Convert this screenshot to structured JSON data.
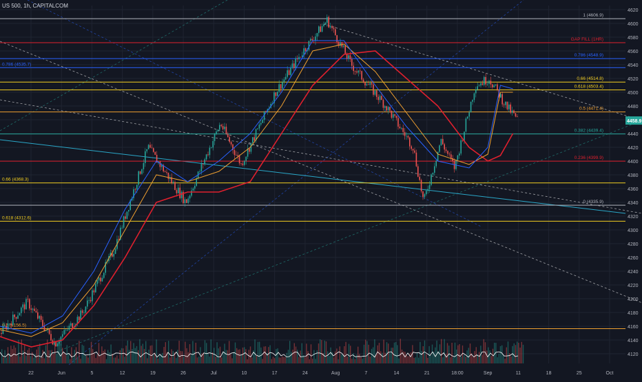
{
  "header": {
    "symbol": "US 500, 1h, CAPITALCOM"
  },
  "colors": {
    "background": "#131722",
    "grid": "#1f2431",
    "axis_text": "#b2b5be",
    "candle_up": "#26a69a",
    "candle_down": "#ef5350",
    "ma_red": "#e0202e",
    "ma_orange": "#f0a030",
    "ma_blue": "#2962ff",
    "price_tag": "#26a69a"
  },
  "chart_data": {
    "type": "line",
    "title": "US 500, 1h, CAPITALCOM",
    "xlabel": "",
    "ylabel": "",
    "ylim": [
      4106,
      4626
    ],
    "x_ticks": [
      "22",
      "Jun",
      "5",
      "12",
      "19",
      "26",
      "Jul",
      "10",
      "17",
      "24",
      "Aug",
      "7",
      "14",
      "21",
      "18:00",
      "Sep",
      "11",
      "18",
      "25",
      "Oct"
    ],
    "y_ticks": [
      4120,
      4140,
      4160,
      4180,
      4200,
      4220,
      4240,
      4260,
      4280,
      4300,
      4320,
      4340,
      4360,
      4380,
      4400,
      4420,
      4440,
      4460,
      4480,
      4500,
      4520,
      4540,
      4560,
      4580,
      4600,
      4620
    ],
    "last_price": {
      "label": "4458.9",
      "value": 4458.9
    },
    "series": [
      {
        "color": "#e0202e",
        "x": [
          0,
          0.05,
          0.1,
          0.15,
          0.2,
          0.25,
          0.3,
          0.35,
          0.4,
          0.45,
          0.5,
          0.55,
          0.6,
          0.65,
          0.7,
          0.75,
          0.78,
          0.8,
          0.82
        ],
        "values": [
          4145,
          4130,
          4140,
          4190,
          4260,
          4340,
          4355,
          4355,
          4370,
          4440,
          4510,
          4555,
          4560,
          4520,
          4480,
          4420,
          4400,
          4408,
          4440
        ]
      },
      {
        "color": "#f0a030",
        "x": [
          0,
          0.05,
          0.1,
          0.15,
          0.2,
          0.25,
          0.3,
          0.35,
          0.4,
          0.45,
          0.5,
          0.55,
          0.6,
          0.65,
          0.7,
          0.75,
          0.78,
          0.8,
          0.82
        ],
        "values": [
          4155,
          4145,
          4165,
          4220,
          4300,
          4380,
          4370,
          4385,
          4420,
          4480,
          4560,
          4570,
          4530,
          4470,
          4410,
          4395,
          4410,
          4500,
          4500
        ]
      },
      {
        "color": "#2962ff",
        "x": [
          0,
          0.05,
          0.1,
          0.15,
          0.2,
          0.25,
          0.3,
          0.35,
          0.4,
          0.45,
          0.5,
          0.55,
          0.6,
          0.65,
          0.7,
          0.75,
          0.78,
          0.8,
          0.82
        ],
        "values": [
          4160,
          4150,
          4175,
          4240,
          4330,
          4400,
          4370,
          4400,
          4440,
          4500,
          4575,
          4575,
          4510,
          4450,
          4400,
          4390,
          4420,
          4510,
          4505
        ]
      }
    ],
    "horizontal_levels": [
      {
        "label": "1 (4606.9)",
        "value": 4606.9,
        "color": "#b2b5be",
        "side": "right"
      },
      {
        "label": "GAP FILL (1HR)",
        "value": 4572.0,
        "color": "#e0202e",
        "side": "right"
      },
      {
        "label": "0.786 (4548.9)",
        "value": 4548.9,
        "color": "#2962ff",
        "side": "right"
      },
      {
        "label": "0.786 (4535.7)",
        "value": 4535.7,
        "color": "#2962ff",
        "side": "left"
      },
      {
        "label": "0.66 (4514.8)",
        "value": 4514.8,
        "color": "#f5d020",
        "side": "right"
      },
      {
        "label": "0.618 (4503.4)",
        "value": 4503.4,
        "color": "#f5d020",
        "side": "right"
      },
      {
        "label": "0.5 (4471.4)",
        "value": 4471.4,
        "color": "#f0a030",
        "side": "right"
      },
      {
        "label": "0.382 (4439.4)",
        "value": 4439.4,
        "color": "#26a69a",
        "side": "right"
      },
      {
        "label": "0.236 (4399.9)",
        "value": 4399.9,
        "color": "#e0202e",
        "side": "right"
      },
      {
        "label": "0.66 (4368.3)",
        "value": 4368.3,
        "color": "#f5d020",
        "side": "left"
      },
      {
        "label": "0 (4335.9)",
        "value": 4335.9,
        "color": "#b2b5be",
        "side": "right"
      },
      {
        "label": "0.618 (4312.6)",
        "value": 4312.6,
        "color": "#f5d020",
        "side": "left"
      },
      {
        "label": "0.5 (4156.5)",
        "value": 4156.5,
        "color": "#f0a030",
        "side": "left"
      }
    ],
    "legend": "none",
    "grid": true
  }
}
